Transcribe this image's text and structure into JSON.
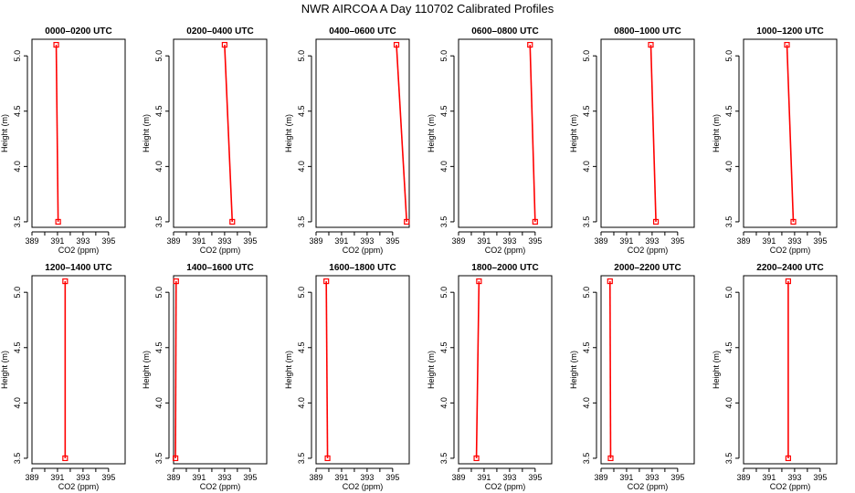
{
  "title": "NWR AIRCOA A  Day 110702  Calibrated Profiles",
  "colors": {
    "line": "#ff0000",
    "axis": "#000000",
    "background": "#ffffff"
  },
  "chart_data": {
    "type": "line",
    "title": "NWR AIRCOA A  Day 110702  Calibrated Profiles",
    "xlabel": "CO2 (ppm)",
    "ylabel": "Height (m)",
    "xlim": [
      389,
      396.3
    ],
    "ylim": [
      3.45,
      5.15
    ],
    "xticks": [
      389,
      391,
      393,
      395
    ],
    "yticks": [
      "3.5",
      "4.0",
      "4.5",
      "5.0"
    ],
    "grid": false,
    "panels": [
      {
        "label": "0000–0200 UTC",
        "points": [
          {
            "x": 390.9,
            "y": 5.1
          },
          {
            "x": 391.05,
            "y": 3.5
          }
        ]
      },
      {
        "label": "0200–0400 UTC",
        "points": [
          {
            "x": 393.0,
            "y": 5.1
          },
          {
            "x": 393.6,
            "y": 3.5
          }
        ]
      },
      {
        "label": "0400–0600 UTC",
        "points": [
          {
            "x": 395.3,
            "y": 5.1
          },
          {
            "x": 396.1,
            "y": 3.5
          }
        ]
      },
      {
        "label": "0600–0800 UTC",
        "points": [
          {
            "x": 394.6,
            "y": 5.1
          },
          {
            "x": 395.0,
            "y": 3.5
          }
        ]
      },
      {
        "label": "0800–1000 UTC",
        "points": [
          {
            "x": 392.9,
            "y": 5.1
          },
          {
            "x": 393.3,
            "y": 3.5
          }
        ]
      },
      {
        "label": "1000–1200 UTC",
        "points": [
          {
            "x": 392.4,
            "y": 5.1
          },
          {
            "x": 392.9,
            "y": 3.5
          }
        ]
      },
      {
        "label": "1200–1400 UTC",
        "points": [
          {
            "x": 391.6,
            "y": 5.1
          },
          {
            "x": 391.6,
            "y": 3.5
          }
        ]
      },
      {
        "label": "1400–1600 UTC",
        "points": [
          {
            "x": 389.2,
            "y": 5.1
          },
          {
            "x": 389.15,
            "y": 3.5
          }
        ]
      },
      {
        "label": "1600–1800 UTC",
        "points": [
          {
            "x": 389.8,
            "y": 5.1
          },
          {
            "x": 389.9,
            "y": 3.5
          }
        ]
      },
      {
        "label": "1800–2000 UTC",
        "points": [
          {
            "x": 390.6,
            "y": 5.1
          },
          {
            "x": 390.4,
            "y": 3.5
          }
        ]
      },
      {
        "label": "2000–2200 UTC",
        "points": [
          {
            "x": 389.7,
            "y": 5.1
          },
          {
            "x": 389.75,
            "y": 3.5
          }
        ]
      },
      {
        "label": "2200–2400 UTC",
        "points": [
          {
            "x": 392.5,
            "y": 5.1
          },
          {
            "x": 392.5,
            "y": 3.5
          }
        ]
      }
    ]
  }
}
